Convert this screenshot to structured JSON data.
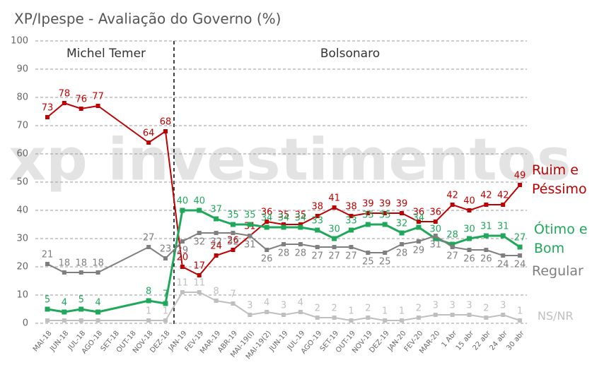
{
  "chart_data": {
    "type": "line",
    "title": "XP/Ipespe - Avaliação do Governo (%)",
    "watermark": "xp investimentos",
    "annotations": [
      "Michel Temer",
      "Bolsonaro"
    ],
    "categories": [
      "MAI-18",
      "JUN-18",
      "JUL-18",
      "AGO-18",
      "SET-18",
      "OUT-18",
      "NOV-18",
      "DEZ-18",
      "JAN-19",
      "FEV-19",
      "MAR-19",
      "ABR-19",
      "MAI-19(I)",
      "MAI-19(2)",
      "JUN-19",
      "JUL-19",
      "AGO-19",
      "SET-19",
      "OUT-19",
      "NOV-19",
      "DEZ-19",
      "JAN-20",
      "FEV-20",
      "MAR-20",
      "1 Abr",
      "15 abr",
      "22 abr",
      "24 abr",
      "30 abr"
    ],
    "ylim": [
      0,
      100
    ],
    "yticks": [
      0,
      10,
      20,
      30,
      40,
      50,
      60,
      70,
      80,
      90,
      100
    ],
    "grid": true,
    "series": [
      {
        "name": "Ruim e Péssimo",
        "color": "#c00000",
        "values": [
          73,
          78,
          76,
          77,
          null,
          null,
          64,
          68,
          20,
          17,
          24,
          26,
          31,
          36,
          35,
          35,
          38,
          41,
          38,
          39,
          39,
          39,
          36,
          36,
          42,
          40,
          42,
          42,
          49
        ]
      },
      {
        "name": "Ótimo e Bom",
        "color": "#1fa85a",
        "values": [
          5,
          4,
          5,
          4,
          null,
          null,
          8,
          7,
          40,
          40,
          37,
          35,
          35,
          34,
          34,
          34,
          33,
          30,
          33,
          35,
          35,
          32,
          34,
          30,
          28,
          30,
          31,
          31,
          27
        ]
      },
      {
        "name": "Regular",
        "color": "#7f7f7f",
        "values": [
          21,
          18,
          18,
          18,
          null,
          null,
          27,
          23,
          29,
          32,
          32,
          32,
          31,
          26,
          28,
          28,
          27,
          27,
          27,
          25,
          25,
          28,
          29,
          31,
          27,
          26,
          26,
          24,
          24
        ]
      },
      {
        "name": "NS/NR",
        "color": "#bfbfbf",
        "values": [
          1,
          1,
          1,
          1,
          null,
          null,
          1,
          1,
          11,
          11,
          8,
          7,
          3,
          4,
          3,
          4,
          2,
          2,
          1,
          2,
          1,
          1,
          2,
          3,
          3,
          3,
          2,
          3,
          1
        ],
        "value_labels": [
          null,
          null,
          null,
          null,
          null,
          null,
          "1",
          "1",
          "11",
          "11",
          "8",
          "7",
          "3",
          "4",
          "3",
          "4",
          "2",
          "2",
          "1",
          "2",
          "1",
          "1",
          "2",
          "3",
          "3",
          "3",
          "2",
          "3",
          "1"
        ]
      }
    ]
  }
}
